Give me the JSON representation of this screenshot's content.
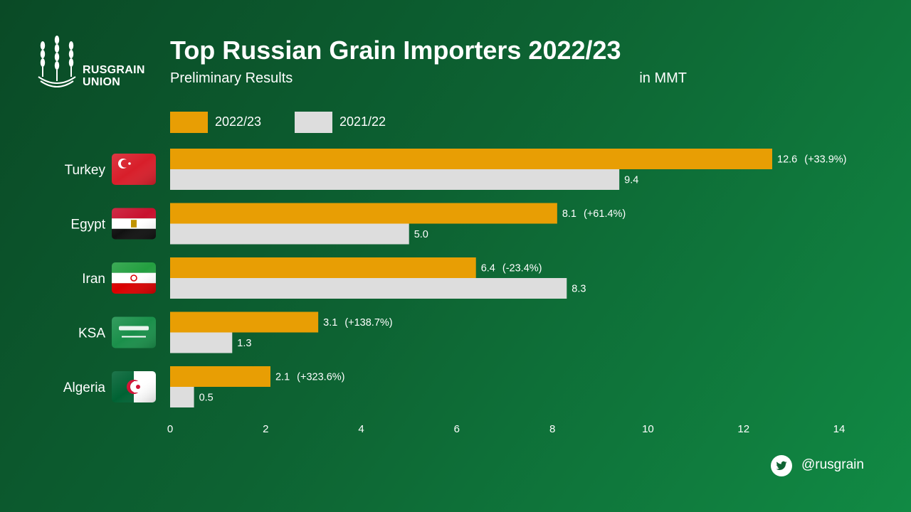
{
  "brand": {
    "name_line1": "RUSGRAIN",
    "name_line2": "UNION"
  },
  "social": {
    "handle": "@rusgrain",
    "icon": "twitter-bird-icon"
  },
  "colors": {
    "series_2022_23": "#e89e04",
    "series_2021_22": "#dddddd",
    "text": "#ffffff"
  },
  "chart_data": {
    "type": "bar",
    "orientation": "horizontal",
    "title": "Top Russian Grain Importers 2022/23",
    "subtitle": "Preliminary Results",
    "unit_label": "in MMT",
    "categories": [
      "Turkey",
      "Egypt",
      "Iran",
      "KSA",
      "Algeria"
    ],
    "category_icons": [
      "turkey-flag-icon",
      "egypt-flag-icon",
      "iran-flag-icon",
      "saudi-arabia-flag-icon",
      "algeria-flag-icon"
    ],
    "series": [
      {
        "name": "2022/23",
        "values": [
          12.6,
          8.1,
          6.4,
          3.1,
          2.1
        ],
        "labels": [
          "12.6",
          "8.1",
          "6.4",
          "3.1",
          "2.1"
        ],
        "changes": [
          "(+33.9%)",
          "(+61.4%)",
          "(-23.4%)",
          "(+138.7%)",
          "(+323.6%)"
        ]
      },
      {
        "name": "2021/22",
        "values": [
          9.4,
          5.0,
          8.3,
          1.3,
          0.5
        ],
        "labels": [
          "9.4",
          "5.0",
          "8.3",
          "1.3",
          "0.5"
        ]
      }
    ],
    "xlim": [
      0,
      14
    ],
    "xticks": [
      0,
      2,
      4,
      6,
      8,
      10,
      12,
      14
    ],
    "legend_position": "top",
    "grid": false
  }
}
